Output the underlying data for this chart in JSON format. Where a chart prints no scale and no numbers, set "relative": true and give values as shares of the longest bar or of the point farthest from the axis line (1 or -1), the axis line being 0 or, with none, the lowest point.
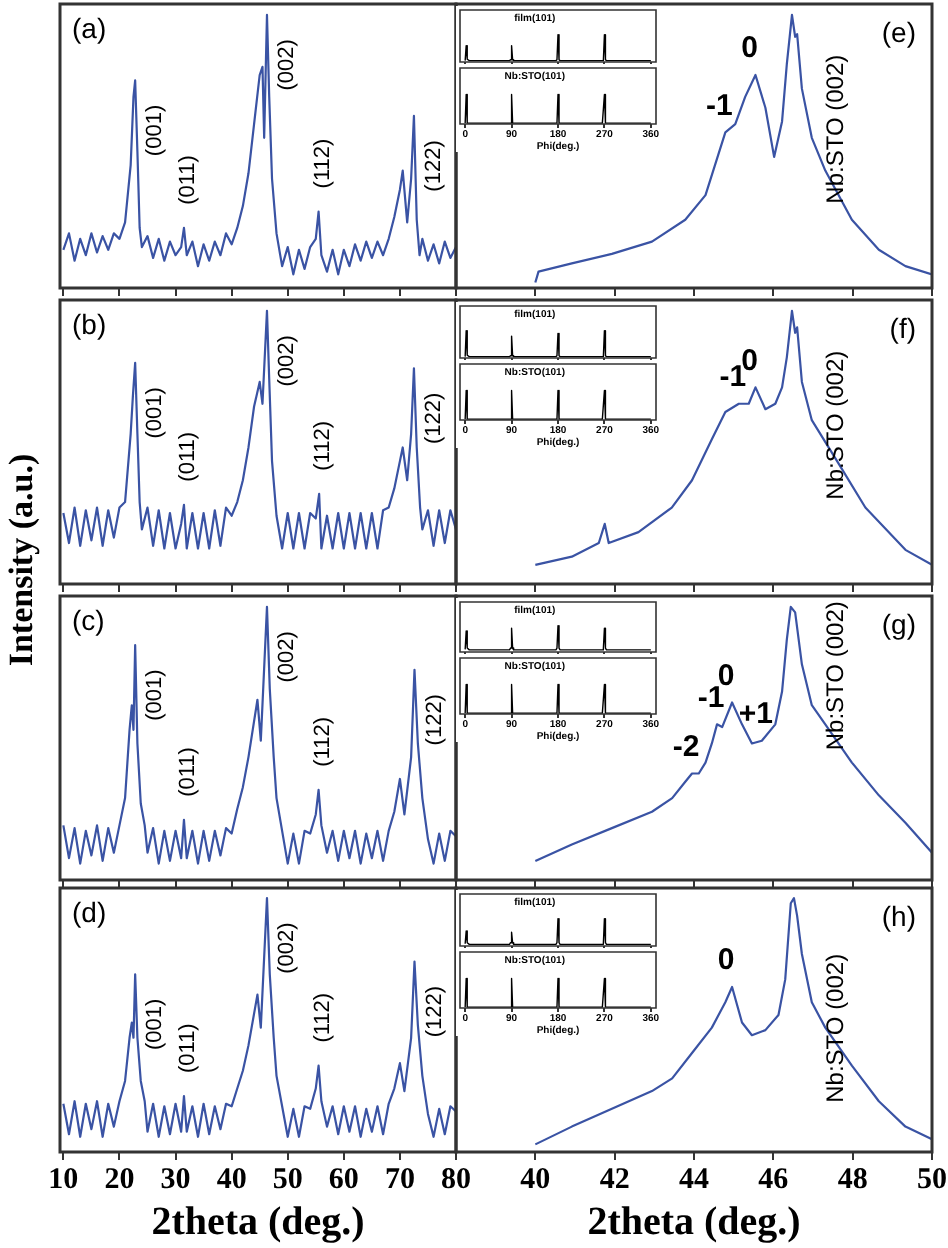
{
  "chart_data": [
    {
      "type": "line",
      "xlim": [
        9.4,
        80
      ],
      "xticks": [
        10,
        20,
        30,
        40,
        50,
        60,
        70,
        80
      ],
      "tick_labels": false,
      "relative": true,
      "annotations": [
        "(a)",
        {
          "text": "(001)",
          "x": 22.8,
          "y": 0.76
        },
        {
          "text": "(011)",
          "x": 31.5,
          "y": 0.22
        },
        {
          "text": "(002)",
          "x": 46.3,
          "y": 1
        },
        {
          "text": "(112)",
          "x": 55.5,
          "y": 0.28
        },
        {
          "text": "(122)",
          "x": 72.5,
          "y": 0.63
        }
      ],
      "series": [
        {
          "color": "#3a53a4",
          "x": [
            10,
            11,
            12,
            13,
            14,
            15,
            16,
            17,
            18,
            19,
            20,
            21,
            22,
            22.5,
            22.8,
            23.2,
            23.6,
            24,
            25,
            26,
            27,
            28,
            29,
            30,
            31,
            31.5,
            32,
            33,
            34,
            35,
            36,
            37,
            38,
            39,
            40,
            41,
            42,
            43,
            44,
            45,
            45.5,
            45.8,
            46.3,
            46.7,
            47.2,
            48,
            49,
            50,
            51,
            52,
            53,
            54,
            55,
            55.5,
            56,
            57,
            58,
            59,
            60,
            61,
            62,
            63,
            64,
            65,
            66,
            67,
            68,
            69,
            70,
            70.5,
            71.3,
            72,
            72.5,
            73,
            73.5,
            74,
            75,
            76,
            77,
            78,
            79,
            80
          ],
          "values": [
            0.14,
            0.2,
            0.1,
            0.18,
            0.12,
            0.2,
            0.13,
            0.19,
            0.14,
            0.2,
            0.18,
            0.24,
            0.45,
            0.7,
            0.76,
            0.5,
            0.22,
            0.15,
            0.19,
            0.11,
            0.18,
            0.1,
            0.17,
            0.12,
            0.15,
            0.22,
            0.12,
            0.17,
            0.08,
            0.16,
            0.1,
            0.17,
            0.12,
            0.2,
            0.16,
            0.22,
            0.3,
            0.42,
            0.6,
            0.78,
            0.81,
            0.55,
            1,
            0.7,
            0.4,
            0.2,
            0.08,
            0.15,
            0.05,
            0.14,
            0.07,
            0.15,
            0.18,
            0.28,
            0.12,
            0.06,
            0.14,
            0.05,
            0.14,
            0.08,
            0.16,
            0.1,
            0.17,
            0.11,
            0.17,
            0.12,
            0.18,
            0.26,
            0.36,
            0.43,
            0.24,
            0.4,
            0.63,
            0.25,
            0.12,
            0.18,
            0.1,
            0.16,
            0.09,
            0.17,
            0.11,
            0.15
          ]
        }
      ]
    },
    {
      "type": "line",
      "xlim": [
        38,
        50
      ],
      "xticks": [
        40,
        42,
        44,
        46,
        48,
        50
      ],
      "tick_labels": false,
      "relative": true,
      "annotations": [
        "(e)",
        "Nb:STO (002)",
        {
          "text": "-1",
          "x": 44.79,
          "y": 0.57
        },
        {
          "text": "0",
          "x": 45.55,
          "y": 0.78
        }
      ],
      "series": [
        {
          "color": "#3a53a4",
          "x": [
            40,
            40.08,
            40.92,
            41.93,
            42.94,
            43.78,
            44.29,
            44.79,
            45.04,
            45.29,
            45.55,
            45.8,
            46.02,
            46.22,
            46.34,
            46.47,
            46.55,
            46.6,
            46.72,
            46.97,
            47.31,
            47.98,
            48.66,
            49.33,
            50
          ],
          "values": [
            0.02,
            0.06,
            0.09,
            0.125,
            0.17,
            0.25,
            0.34,
            0.57,
            0.6,
            0.7,
            0.78,
            0.66,
            0.48,
            0.61,
            0.82,
            1,
            0.92,
            0.93,
            0.73,
            0.55,
            0.43,
            0.25,
            0.14,
            0.08,
            0.05
          ]
        }
      ]
    },
    {
      "type": "line",
      "title": "film(101)",
      "xlim": [
        -10,
        370
      ],
      "xticks": [
        0,
        90,
        180,
        270,
        360
      ],
      "tick_labels": false,
      "relative": true,
      "series": [
        {
          "color": "#000000",
          "x": [
            0,
            2,
            4,
            8,
            86,
            88,
            90,
            92,
            94,
            176,
            178,
            180,
            182,
            184,
            266,
            268,
            270,
            272,
            274,
            360
          ],
          "values": [
            0.05,
            0.6,
            0.1,
            0.05,
            0.05,
            0.08,
            0.6,
            0.08,
            0.05,
            0.05,
            0.08,
            1,
            0.08,
            0.05,
            0.05,
            0.08,
            1,
            0.08,
            0.05,
            0.05
          ]
        }
      ]
    },
    {
      "type": "line",
      "title": "Nb:STO(101)",
      "xlabel": "Phi(deg.)",
      "xlim": [
        -10,
        370
      ],
      "xticks": [
        0,
        90,
        180,
        270,
        360
      ],
      "tick_labels": "x",
      "relative": true,
      "series": [
        {
          "color": "#000000",
          "x": [
            0,
            2,
            4,
            8,
            86,
            88,
            90,
            92,
            94,
            176,
            178,
            180,
            182,
            184,
            266,
            268,
            270,
            272,
            274,
            360
          ],
          "values": [
            0.03,
            1,
            0.03,
            0.03,
            0.03,
            0.03,
            1,
            0.03,
            0.03,
            0.03,
            0.03,
            1,
            0.03,
            0.03,
            0.03,
            0.03,
            1,
            0.03,
            0.03,
            0.03
          ]
        }
      ]
    },
    {
      "type": "line",
      "ylabel": "Intensity (a.u.)",
      "xlim": [
        9.4,
        80
      ],
      "xticks": [
        10,
        20,
        30,
        40,
        50,
        60,
        70,
        80
      ],
      "tick_labels": false,
      "relative": true,
      "annotations": [
        "(b)",
        {
          "text": "(001)",
          "x": 22.8,
          "y": 0.81
        },
        {
          "text": "(011)",
          "x": 31.5,
          "y": 0.29
        },
        {
          "text": "(002)",
          "x": 46.3,
          "y": 1
        },
        {
          "text": "(112)",
          "x": 55.6,
          "y": 0.33
        },
        {
          "text": "(122)",
          "x": 72.5,
          "y": 0.79
        }
      ],
      "series": [
        {
          "color": "#3a53a4",
          "x": [
            10,
            11,
            12,
            13,
            14,
            15,
            16,
            17,
            18,
            19,
            20,
            21,
            22,
            22.4,
            22.8,
            23.2,
            23.6,
            24,
            25,
            26,
            27,
            28,
            29,
            30,
            31,
            31.5,
            32,
            33,
            34,
            35,
            36,
            37,
            38,
            39,
            40,
            41,
            42,
            43,
            44,
            45,
            45.5,
            46.3,
            46.7,
            47.2,
            48,
            49,
            50,
            51,
            52,
            53,
            54,
            55,
            55.6,
            56,
            57,
            58,
            59,
            60,
            61,
            62,
            63,
            64,
            65,
            66,
            67,
            68,
            69,
            70,
            70.5,
            71.3,
            72,
            72.5,
            73,
            73.6,
            74,
            75,
            76,
            77,
            78,
            79,
            80
          ],
          "values": [
            0.26,
            0.15,
            0.28,
            0.14,
            0.27,
            0.16,
            0.28,
            0.14,
            0.27,
            0.17,
            0.28,
            0.3,
            0.55,
            0.69,
            0.81,
            0.55,
            0.3,
            0.2,
            0.28,
            0.14,
            0.27,
            0.13,
            0.26,
            0.13,
            0.22,
            0.29,
            0.13,
            0.26,
            0.13,
            0.26,
            0.13,
            0.27,
            0.14,
            0.28,
            0.25,
            0.3,
            0.38,
            0.5,
            0.65,
            0.74,
            0.66,
            1,
            0.75,
            0.45,
            0.25,
            0.13,
            0.26,
            0.13,
            0.26,
            0.13,
            0.26,
            0.24,
            0.33,
            0.13,
            0.25,
            0.13,
            0.26,
            0.13,
            0.26,
            0.13,
            0.26,
            0.13,
            0.26,
            0.13,
            0.27,
            0.28,
            0.35,
            0.45,
            0.5,
            0.38,
            0.55,
            0.79,
            0.5,
            0.28,
            0.2,
            0.27,
            0.14,
            0.27,
            0.15,
            0.27,
            0.2
          ]
        }
      ]
    },
    {
      "type": "line",
      "xlim": [
        38,
        50
      ],
      "xticks": [
        40,
        42,
        44,
        46,
        48,
        50
      ],
      "tick_labels": false,
      "relative": true,
      "annotations": [
        "(f)",
        "Nb:STO (002)",
        {
          "text": "-1",
          "x": 45.13,
          "y": 0.66
        },
        {
          "text": "0",
          "x": 45.55,
          "y": 0.72
        }
      ],
      "series": [
        {
          "color": "#3a53a4",
          "x": [
            40,
            40.92,
            41.6,
            41.75,
            41.85,
            42.6,
            43.44,
            43.95,
            44.45,
            44.79,
            45.13,
            45.38,
            45.55,
            45.8,
            46.05,
            46.22,
            46.34,
            46.47,
            46.55,
            46.6,
            46.72,
            46.97,
            47.65,
            48.32,
            49.33,
            50
          ],
          "values": [
            0.07,
            0.1,
            0.15,
            0.22,
            0.15,
            0.19,
            0.28,
            0.38,
            0.53,
            0.63,
            0.66,
            0.66,
            0.72,
            0.64,
            0.66,
            0.72,
            0.83,
            1,
            0.92,
            0.94,
            0.74,
            0.6,
            0.44,
            0.28,
            0.125,
            0.07
          ]
        }
      ]
    },
    {
      "type": "line",
      "title": "film(101)",
      "xlim": [
        -10,
        370
      ],
      "xticks": [
        0,
        90,
        180,
        270,
        360
      ],
      "tick_labels": false,
      "relative": true,
      "series": [
        {
          "color": "#000000",
          "x": [
            0,
            2,
            4,
            8,
            86,
            88,
            90,
            92,
            94,
            176,
            178,
            180,
            182,
            184,
            266,
            268,
            270,
            272,
            274,
            360
          ],
          "values": [
            0.05,
            1,
            0.1,
            0.05,
            0.05,
            0.08,
            0.8,
            0.08,
            0.05,
            0.05,
            0.08,
            0.9,
            0.08,
            0.05,
            0.05,
            0.08,
            1,
            0.08,
            0.05,
            0.05
          ]
        }
      ]
    },
    {
      "type": "line",
      "title": "Nb:STO(101)",
      "xlabel": "Phi(deg.)",
      "xlim": [
        -10,
        370
      ],
      "xticks": [
        0,
        90,
        180,
        270,
        360
      ],
      "tick_labels": "x",
      "relative": true,
      "series": [
        {
          "color": "#000000",
          "x": [
            0,
            2,
            4,
            8,
            86,
            88,
            90,
            92,
            94,
            176,
            178,
            180,
            182,
            184,
            266,
            268,
            270,
            272,
            274,
            360
          ],
          "values": [
            0.03,
            1,
            0.03,
            0.03,
            0.03,
            0.03,
            1,
            0.03,
            0.03,
            0.03,
            0.03,
            1,
            0.03,
            0.03,
            0.03,
            0.03,
            1,
            0.03,
            0.03,
            0.03
          ]
        }
      ]
    },
    {
      "type": "line",
      "xlim": [
        9.4,
        80
      ],
      "xticks": [
        10,
        20,
        30,
        40,
        50,
        60,
        70,
        80
      ],
      "tick_labels": false,
      "relative": true,
      "annotations": [
        "(c)",
        {
          "text": "(001)",
          "x": 22.8,
          "y": 0.86
        },
        {
          "text": "(011)",
          "x": 31.5,
          "y": 0.22
        },
        {
          "text": "(002)",
          "x": 46.3,
          "y": 1
        },
        {
          "text": "(112)",
          "x": 55.5,
          "y": 0.33
        },
        {
          "text": "(122)",
          "x": 72.6,
          "y": 0.77
        }
      ],
      "series": [
        {
          "color": "#3a53a4",
          "x": [
            10,
            11,
            12,
            13,
            14,
            15,
            16,
            17,
            18,
            19,
            20,
            21,
            21.8,
            22.2,
            22.5,
            22.8,
            23.2,
            23.8,
            24.5,
            25,
            26,
            27,
            28,
            29,
            30,
            31,
            31.5,
            32,
            33,
            34,
            35,
            36,
            37,
            38,
            39,
            40,
            41,
            42,
            43,
            44.6,
            45.2,
            46.3,
            46.8,
            47.5,
            48,
            49,
            50,
            51,
            52,
            53,
            54,
            55,
            55.5,
            56,
            57,
            58,
            59,
            60,
            61,
            62,
            63,
            64,
            65,
            66,
            67,
            68,
            69,
            70,
            70.8,
            72,
            72.6,
            73.2,
            74,
            75,
            76,
            77,
            78,
            79,
            80
          ],
          "values": [
            0.2,
            0.08,
            0.19,
            0.06,
            0.18,
            0.09,
            0.2,
            0.07,
            0.19,
            0.1,
            0.2,
            0.3,
            0.55,
            0.64,
            0.55,
            0.86,
            0.5,
            0.28,
            0.2,
            0.1,
            0.19,
            0.06,
            0.18,
            0.07,
            0.18,
            0.08,
            0.22,
            0.08,
            0.18,
            0.06,
            0.18,
            0.07,
            0.18,
            0.09,
            0.19,
            0.17,
            0.26,
            0.34,
            0.45,
            0.66,
            0.51,
            1,
            0.7,
            0.45,
            0.3,
            0.18,
            0.06,
            0.17,
            0.06,
            0.18,
            0.17,
            0.24,
            0.33,
            0.2,
            0.1,
            0.18,
            0.07,
            0.18,
            0.08,
            0.18,
            0.06,
            0.17,
            0.08,
            0.18,
            0.07,
            0.18,
            0.25,
            0.37,
            0.24,
            0.45,
            0.77,
            0.5,
            0.3,
            0.15,
            0.06,
            0.17,
            0.07,
            0.18,
            0.16
          ]
        }
      ]
    },
    {
      "type": "line",
      "xlim": [
        38,
        50
      ],
      "xticks": [
        40,
        42,
        44,
        46,
        48,
        50
      ],
      "tick_labels": false,
      "relative": true,
      "annotations": [
        "(g)",
        "Nb:STO (002)",
        {
          "text": "-2",
          "x": 43.95,
          "y": 0.39
        },
        {
          "text": "-1",
          "x": 44.58,
          "y": 0.57
        },
        {
          "text": "0",
          "x": 44.96,
          "y": 0.65
        },
        {
          "text": "+1",
          "x": 45.71,
          "y": 0.51
        }
      ],
      "series": [
        {
          "color": "#3a53a4",
          "x": [
            40,
            40.92,
            41.93,
            42.94,
            43.45,
            43.78,
            43.95,
            44.12,
            44.29,
            44.45,
            44.58,
            44.71,
            44.96,
            45.21,
            45.46,
            45.71,
            46.05,
            46.22,
            46.34,
            46.44,
            46.55,
            46.72,
            46.97,
            47.31,
            47.98,
            48.66,
            49.33,
            50
          ],
          "values": [
            0.07,
            0.13,
            0.19,
            0.25,
            0.3,
            0.36,
            0.39,
            0.39,
            0.43,
            0.5,
            0.57,
            0.56,
            0.65,
            0.57,
            0.5,
            0.51,
            0.57,
            0.69,
            0.88,
            1,
            0.98,
            0.79,
            0.64,
            0.57,
            0.43,
            0.31,
            0.21,
            0.1
          ]
        }
      ]
    },
    {
      "type": "line",
      "title": "film(101)",
      "xlim": [
        -10,
        370
      ],
      "xticks": [
        0,
        90,
        180,
        270,
        360
      ],
      "tick_labels": false,
      "relative": true,
      "series": [
        {
          "color": "#000000",
          "x": [
            0,
            2,
            4,
            8,
            86,
            88,
            90,
            92,
            94,
            176,
            178,
            180,
            182,
            184,
            266,
            268,
            270,
            272,
            274,
            360
          ],
          "values": [
            0.1,
            0.8,
            0.15,
            0.08,
            0.08,
            0.15,
            0.9,
            0.15,
            0.08,
            0.08,
            0.15,
            1,
            0.15,
            0.08,
            0.08,
            0.15,
            0.9,
            0.15,
            0.08,
            0.08
          ]
        }
      ]
    },
    {
      "type": "line",
      "title": "Nb:STO(101)",
      "xlabel": "Phi(deg.)",
      "xlim": [
        -10,
        370
      ],
      "xticks": [
        0,
        90,
        180,
        270,
        360
      ],
      "tick_labels": "x",
      "relative": true,
      "series": [
        {
          "color": "#000000",
          "x": [
            0,
            2,
            4,
            8,
            86,
            88,
            90,
            92,
            94,
            176,
            178,
            180,
            182,
            184,
            266,
            268,
            270,
            272,
            274,
            360
          ],
          "values": [
            0.03,
            1,
            0.03,
            0.03,
            0.03,
            0.03,
            1,
            0.03,
            0.03,
            0.03,
            0.03,
            1,
            0.03,
            0.03,
            0.03,
            0.03,
            1,
            0.03,
            0.03,
            0.03
          ]
        }
      ]
    },
    {
      "type": "line",
      "xlabel": "2theta (deg.)",
      "xlim": [
        9.4,
        80
      ],
      "xticks": [
        10,
        20,
        30,
        40,
        50,
        60,
        70,
        80
      ],
      "tick_labels": "x",
      "relative": true,
      "annotations": [
        "(d)",
        {
          "text": "(001)",
          "x": 22.8,
          "y": 0.7
        },
        {
          "text": "(011)",
          "x": 31.5,
          "y": 0.22
        },
        {
          "text": "(002)",
          "x": 46.3,
          "y": 1
        },
        {
          "text": "(112)",
          "x": 55.5,
          "y": 0.34
        },
        {
          "text": "(122)",
          "x": 72.6,
          "y": 0.75
        }
      ],
      "series": [
        {
          "color": "#3a53a4",
          "x": [
            10,
            11,
            12,
            13,
            14,
            15,
            16,
            17,
            18,
            19,
            20,
            21,
            21.8,
            22.2,
            22.5,
            22.8,
            23.2,
            23.8,
            24.5,
            25,
            26,
            27,
            28,
            29,
            30,
            31,
            31.5,
            32,
            33,
            34,
            35,
            36,
            37,
            38,
            39,
            40,
            41,
            42,
            43,
            44.6,
            45.2,
            46.3,
            46.8,
            47.5,
            48,
            49,
            50,
            51,
            52,
            53,
            54,
            55,
            55.5,
            56,
            57,
            58,
            59,
            60,
            61,
            62,
            63,
            64,
            65,
            66,
            67,
            68,
            69,
            70,
            70.8,
            72,
            72.6,
            73.2,
            74,
            75,
            76,
            77,
            78,
            79,
            80
          ],
          "values": [
            0.19,
            0.07,
            0.2,
            0.06,
            0.19,
            0.09,
            0.2,
            0.06,
            0.19,
            0.1,
            0.2,
            0.28,
            0.45,
            0.51,
            0.45,
            0.7,
            0.45,
            0.28,
            0.2,
            0.08,
            0.19,
            0.06,
            0.18,
            0.07,
            0.19,
            0.08,
            0.22,
            0.08,
            0.18,
            0.06,
            0.19,
            0.07,
            0.18,
            0.09,
            0.19,
            0.18,
            0.25,
            0.32,
            0.42,
            0.62,
            0.49,
            1,
            0.7,
            0.45,
            0.3,
            0.18,
            0.06,
            0.17,
            0.06,
            0.18,
            0.17,
            0.25,
            0.34,
            0.2,
            0.1,
            0.18,
            0.07,
            0.18,
            0.08,
            0.18,
            0.06,
            0.17,
            0.08,
            0.18,
            0.07,
            0.19,
            0.25,
            0.35,
            0.24,
            0.45,
            0.75,
            0.5,
            0.3,
            0.15,
            0.06,
            0.17,
            0.07,
            0.18,
            0.16
          ]
        }
      ]
    },
    {
      "type": "line",
      "xlabel": "2theta (deg.)",
      "xlim": [
        38,
        50
      ],
      "xticks": [
        40,
        42,
        44,
        46,
        48,
        50
      ],
      "tick_labels": "x",
      "relative": true,
      "annotations": [
        "(h)",
        "Nb:STO (002)",
        {
          "text": "0",
          "x": 44.96,
          "y": 0.65
        }
      ],
      "series": [
        {
          "color": "#3a53a4",
          "x": [
            40,
            40.92,
            41.93,
            42.94,
            43.45,
            43.95,
            44.45,
            44.79,
            44.96,
            45.21,
            45.46,
            45.8,
            46.13,
            46.3,
            46.44,
            46.52,
            46.6,
            46.72,
            46.97,
            47.31,
            47.98,
            48.66,
            49.33,
            50
          ],
          "values": [
            0.03,
            0.1,
            0.17,
            0.24,
            0.29,
            0.39,
            0.49,
            0.59,
            0.65,
            0.51,
            0.46,
            0.48,
            0.54,
            0.68,
            0.98,
            1,
            0.93,
            0.78,
            0.59,
            0.49,
            0.34,
            0.2,
            0.1,
            0.05
          ]
        }
      ]
    },
    {
      "type": "line",
      "title": "film(101)",
      "xlim": [
        -10,
        370
      ],
      "xticks": [
        0,
        90,
        180,
        270,
        360
      ],
      "tick_labels": false,
      "relative": true,
      "series": [
        {
          "color": "#000000",
          "x": [
            0,
            2,
            4,
            8,
            86,
            88,
            90,
            92,
            94,
            176,
            178,
            180,
            182,
            184,
            266,
            268,
            270,
            272,
            274,
            360
          ],
          "values": [
            0.08,
            0.55,
            0.12,
            0.06,
            0.06,
            0.12,
            0.5,
            0.12,
            0.06,
            0.06,
            0.12,
            1,
            0.12,
            0.06,
            0.06,
            0.12,
            1,
            0.12,
            0.06,
            0.06
          ]
        }
      ]
    },
    {
      "type": "line",
      "title": "Nb:STO(101)",
      "xlabel": "Phi(deg.)",
      "xlim": [
        -10,
        370
      ],
      "xticks": [
        0,
        90,
        180,
        270,
        360
      ],
      "tick_labels": "x",
      "relative": true,
      "series": [
        {
          "color": "#000000",
          "x": [
            0,
            2,
            4,
            8,
            86,
            88,
            90,
            92,
            94,
            176,
            178,
            180,
            182,
            184,
            266,
            268,
            270,
            272,
            274,
            360
          ],
          "values": [
            0.03,
            1,
            0.03,
            0.03,
            0.03,
            0.03,
            1,
            0.03,
            0.03,
            0.03,
            0.03,
            1,
            0.03,
            0.03,
            0.03,
            0.03,
            1,
            0.03,
            0.03,
            0.03
          ]
        }
      ]
    }
  ]
}
